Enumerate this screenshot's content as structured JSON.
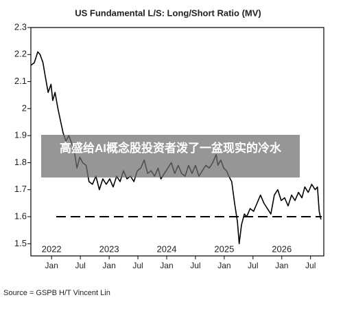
{
  "chart_data": {
    "type": "line",
    "title": "US Fundamental L/S: Long/Short Ratio (MV)",
    "source": "Source = GSPB H/T Vincent Lin",
    "overlay_caption": "高盛给AI概念股投资者泼了一盆现实的冷水",
    "x": [
      2021.64,
      2021.7,
      2021.76,
      2021.8,
      2021.85,
      2021.89,
      2021.94,
      2021.99,
      2022.02,
      2022.06,
      2022.11,
      2022.15,
      2022.2,
      2022.25,
      2022.3,
      2022.35,
      2022.39,
      2022.44,
      2022.49,
      2022.54,
      2022.6,
      2022.65,
      2022.71,
      2022.77,
      2022.83,
      2022.89,
      2022.95,
      2023.01,
      2023.07,
      2023.13,
      2023.19,
      2023.25,
      2023.31,
      2023.37,
      2023.43,
      2023.49,
      2023.55,
      2023.61,
      2023.67,
      2023.73,
      2023.79,
      2023.85,
      2023.9,
      2023.96,
      2024.02,
      2024.08,
      2024.14,
      2024.2,
      2024.26,
      2024.32,
      2024.38,
      2024.44,
      2024.5,
      2024.56,
      2024.62,
      2024.68,
      2024.74,
      2024.8,
      2024.86,
      2024.89,
      2024.94,
      2024.99,
      2025.04,
      2025.08,
      2025.13,
      2025.18,
      2025.23,
      2025.26,
      2025.3,
      2025.35,
      2025.39,
      2025.45,
      2025.51,
      2025.57,
      2025.63,
      2025.69,
      2025.75,
      2025.81,
      2025.87,
      2025.93,
      2025.99,
      2026.05,
      2026.11,
      2026.17,
      2026.23,
      2026.29,
      2026.35,
      2026.4,
      2026.46,
      2026.52,
      2026.58,
      2026.62,
      2026.65,
      2026.68
    ],
    "series": [
      {
        "name": "Long/Short Ratio (MV)",
        "color": "#000000",
        "values": [
          2.16,
          2.17,
          2.21,
          2.2,
          2.17,
          2.12,
          2.06,
          2.09,
          2.03,
          2.06,
          2.0,
          1.96,
          1.91,
          1.88,
          1.9,
          1.87,
          1.85,
          1.78,
          1.82,
          1.8,
          1.79,
          1.73,
          1.72,
          1.75,
          1.7,
          1.74,
          1.72,
          1.74,
          1.71,
          1.75,
          1.73,
          1.77,
          1.74,
          1.75,
          1.73,
          1.77,
          1.78,
          1.81,
          1.76,
          1.77,
          1.75,
          1.78,
          1.74,
          1.76,
          1.78,
          1.8,
          1.76,
          1.79,
          1.76,
          1.75,
          1.79,
          1.76,
          1.79,
          1.75,
          1.77,
          1.79,
          1.78,
          1.8,
          1.83,
          1.79,
          1.81,
          1.78,
          1.77,
          1.75,
          1.73,
          1.65,
          1.58,
          1.5,
          1.57,
          1.61,
          1.6,
          1.63,
          1.62,
          1.65,
          1.68,
          1.65,
          1.63,
          1.61,
          1.68,
          1.7,
          1.66,
          1.67,
          1.64,
          1.68,
          1.66,
          1.69,
          1.67,
          1.71,
          1.69,
          1.72,
          1.7,
          1.71,
          1.62,
          1.59
        ]
      }
    ],
    "reference_line": 1.6,
    "xlim": [
      2021.64,
      2026.73
    ],
    "xticks": [
      {
        "value": 2022,
        "label": "Jan"
      },
      {
        "value": 2022.5,
        "label": "Jul"
      },
      {
        "value": 2023,
        "label": "Jan"
      },
      {
        "value": 2023.5,
        "label": "Jul"
      },
      {
        "value": 2024,
        "label": "Jan"
      },
      {
        "value": 2024.5,
        "label": "Jul"
      },
      {
        "value": 2025,
        "label": "Jan"
      },
      {
        "value": 2025.5,
        "label": "Jul"
      },
      {
        "value": 2026,
        "label": "Jan"
      },
      {
        "value": 2026.5,
        "label": "Jul"
      }
    ],
    "year_labels": [
      2022,
      2023,
      2024,
      2025,
      2026
    ],
    "ylim": [
      1.455,
      2.3
    ],
    "yticks": [
      1.5,
      1.6,
      1.7,
      1.8,
      1.9,
      2,
      2.1,
      2.2,
      2.3
    ]
  }
}
